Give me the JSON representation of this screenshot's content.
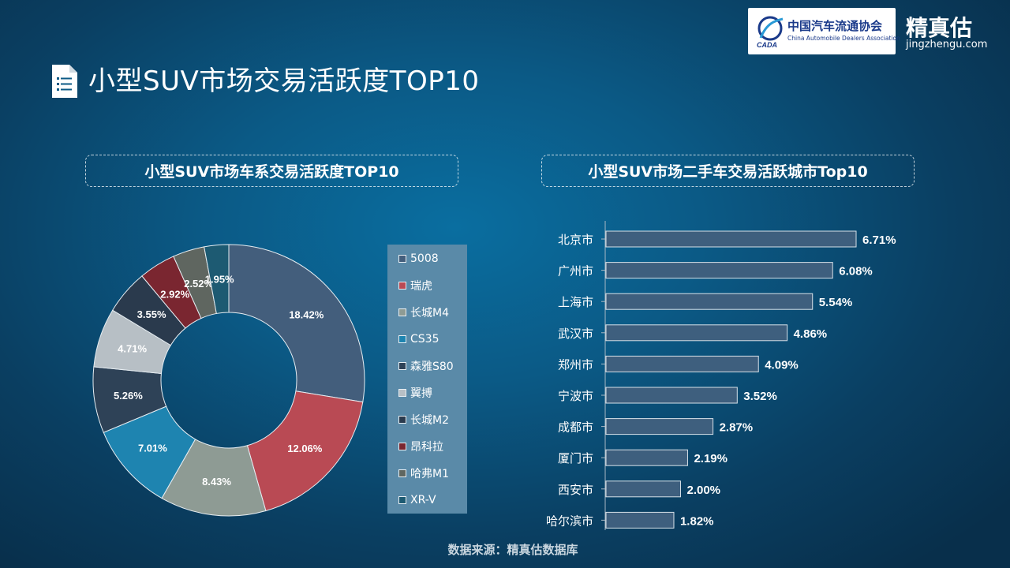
{
  "header": {
    "title": "小型SUV市场交易活跃度TOP10",
    "logo_cn": "中国汽车流通协会",
    "logo_en": "China Automobile Dealers Association",
    "logo_abbr": "CADA",
    "brand_name": "精真估",
    "brand_url": "jingzhengu.com"
  },
  "colors": {
    "accent_bar": "#3e5f7e",
    "legend_bg": "#5a8aa8"
  },
  "chart_data": [
    {
      "type": "pie",
      "variant": "donut",
      "title": "小型SUV市场车系交易活跃度TOP10",
      "categories": [
        "5008",
        "瑞虎",
        "长城M4",
        "CS35",
        "森雅S80",
        "翼搏",
        "长城M2",
        "昂科拉",
        "哈弗M1",
        "XR-V"
      ],
      "values": [
        18.42,
        12.06,
        8.43,
        7.01,
        5.26,
        4.71,
        3.55,
        2.92,
        2.52,
        1.95
      ],
      "labels": [
        "18.42%",
        "12.06%",
        "8.43%",
        "7.01%",
        "5.26%",
        "4.71%",
        "3.55%",
        "2.92%",
        "2.52%",
        "1.95%"
      ],
      "colors": [
        "#435e7c",
        "#b94a54",
        "#8e9b94",
        "#1e84b0",
        "#2e4257",
        "#b7bfc5",
        "#2a3a4d",
        "#7a2630",
        "#5f6660",
        "#1d5a72"
      ],
      "legend": "right"
    },
    {
      "type": "bar",
      "orientation": "horizontal",
      "title": "小型SUV市场二手车交易活跃城市Top10",
      "categories": [
        "北京市",
        "广州市",
        "上海市",
        "武汉市",
        "郑州市",
        "宁波市",
        "成都市",
        "厦门市",
        "西安市",
        "哈尔滨市"
      ],
      "values": [
        6.71,
        6.08,
        5.54,
        4.86,
        4.09,
        3.52,
        2.87,
        2.19,
        2.0,
        1.82
      ],
      "labels": [
        "6.71%",
        "6.08%",
        "5.54%",
        "4.86%",
        "4.09%",
        "3.52%",
        "2.87%",
        "2.19%",
        "2.00%",
        "1.82%"
      ],
      "xlim": [
        0,
        6.71
      ],
      "xlabel": "",
      "ylabel": "",
      "grid": false
    }
  ],
  "footer": {
    "source": "数据来源：精真估数据库"
  }
}
